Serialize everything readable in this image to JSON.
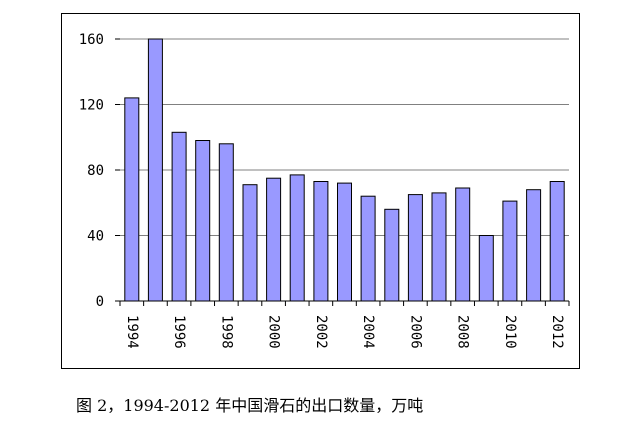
{
  "chart_data": {
    "type": "bar",
    "categories": [
      "1994",
      "1995",
      "1996",
      "1997",
      "1998",
      "1999",
      "2000",
      "2001",
      "2002",
      "2003",
      "2004",
      "2005",
      "2006",
      "2007",
      "2008",
      "2009",
      "2010",
      "2011",
      "2012"
    ],
    "values": [
      124,
      160,
      103,
      98,
      96,
      71,
      75,
      77,
      73,
      72,
      64,
      56,
      65,
      66,
      69,
      40,
      61,
      68,
      73
    ],
    "x_tick_labels": [
      "1994",
      "1996",
      "1998",
      "2000",
      "2002",
      "2004",
      "2006",
      "2008",
      "2010",
      "2012"
    ],
    "y_ticks": [
      0,
      40,
      80,
      120,
      160
    ],
    "ylim": [
      0,
      160
    ],
    "grid": true,
    "legend": "none",
    "colors": {
      "bar_fill": "#9999ff",
      "bar_stroke": "#000000",
      "grid": "#808080"
    }
  },
  "caption": "图 2，1994-2012 年中国滑石的出口数量，万吨"
}
